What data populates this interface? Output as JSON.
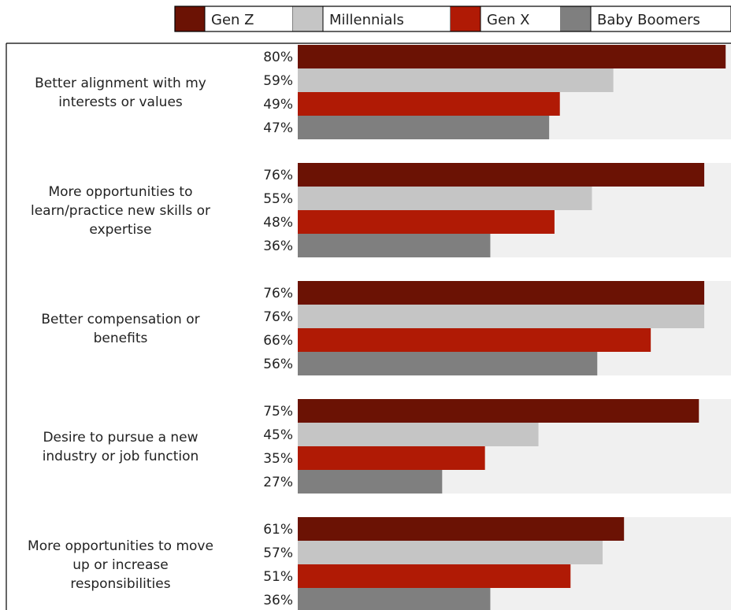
{
  "chart_data": {
    "type": "bar",
    "orientation": "horizontal",
    "xlim": [
      0,
      100
    ],
    "value_suffix": "%",
    "grid": false,
    "legend_position": "top-right",
    "categories": [
      [
        "Better alignment with my",
        "interests or values"
      ],
      [
        "More opportunities to",
        "learn/practice new skills or",
        "expertise"
      ],
      [
        "Better compensation or",
        "benefits"
      ],
      [
        "Desire to pursue a new",
        "industry or job function"
      ],
      [
        "More opportunities to move",
        "up or increase",
        "responsibilities"
      ]
    ],
    "series": [
      {
        "name": "Gen Z",
        "color": "#6b1204",
        "values": [
          80,
          76,
          76,
          75,
          61
        ]
      },
      {
        "name": "Millennials",
        "color": "#c5c5c5",
        "values": [
          59,
          55,
          76,
          45,
          57
        ]
      },
      {
        "name": "Gen X",
        "color": "#b01a05",
        "values": [
          49,
          48,
          66,
          35,
          51
        ]
      },
      {
        "name": "Baby Boomers",
        "color": "#7f7f7f",
        "values": [
          47,
          36,
          56,
          27,
          36
        ]
      }
    ],
    "band_color": "#f0f0f0"
  }
}
